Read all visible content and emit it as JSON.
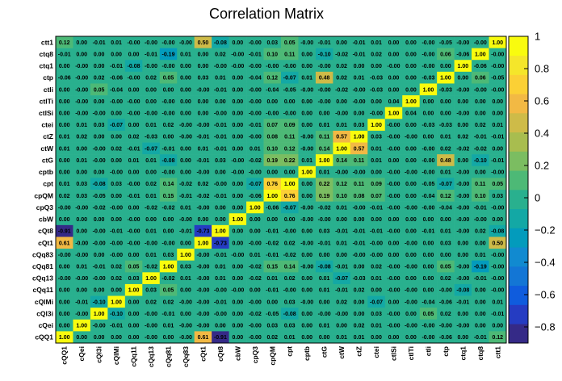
{
  "chart_data": {
    "type": "heatmap",
    "title": "Correlation Matrix",
    "x_labels": [
      "cQQ1",
      "cQei",
      "cQl3i",
      "cQlMi",
      "cQq11",
      "cQq13",
      "cQq81",
      "cQq83",
      "cQt1",
      "cQt8",
      "cbW",
      "cpQ3",
      "cpQM",
      "cpt",
      "cptb",
      "ctG",
      "ctW",
      "ctZ",
      "ctei",
      "ctlSi",
      "ctlTi",
      "ctli",
      "ctp",
      "ctq1",
      "ctq8",
      "ctt1"
    ],
    "y_labels": [
      "ctt1",
      "ctq8",
      "ctq1",
      "ctp",
      "ctli",
      "ctlTi",
      "ctlSi",
      "ctei",
      "ctZ",
      "ctW",
      "ctG",
      "cptb",
      "cpt",
      "cpQM",
      "cpQ3",
      "cbW",
      "cQt8",
      "cQt1",
      "cQq83",
      "cQq81",
      "cQq13",
      "cQq11",
      "cQlMi",
      "cQl3i",
      "cQei",
      "cQQ1"
    ],
    "values": [
      [
        "0.12",
        "0.00",
        "-0.01",
        "0.01",
        "-0.00",
        "-0.00",
        "-0.00",
        "-0.00",
        "0.50",
        "-0.08",
        "0.00",
        "-0.00",
        "0.03",
        "0.05",
        "-0.00",
        "-0.01",
        "0.00",
        "-0.01",
        "0.01",
        "0.00",
        "0.00",
        "-0.00",
        "-0.05",
        "-0.00",
        "-0.00",
        "1.00"
      ],
      [
        "-0.01",
        "0.00",
        "0.00",
        "0.00",
        "0.00",
        "-0.01",
        "-0.19",
        "0.01",
        "0.00",
        "0.02",
        "-0.00",
        "-0.01",
        "0.10",
        "0.11",
        "0.00",
        "-0.10",
        "-0.02",
        "-0.01",
        "0.02",
        "0.00",
        "0.00",
        "-0.00",
        "0.06",
        "-0.06",
        "1.00",
        "-0.00"
      ],
      [
        "0.00",
        "-0.00",
        "0.00",
        "-0.01",
        "-0.08",
        "-0.00",
        "-0.00",
        "0.00",
        "0.00",
        "-0.00",
        "-0.00",
        "-0.00",
        "-0.00",
        "-0.00",
        "0.00",
        "-0.00",
        "0.02",
        "0.00",
        "0.00",
        "-0.00",
        "0.00",
        "-0.00",
        "0.00",
        "1.00",
        "-0.06",
        "-0.00"
      ],
      [
        "-0.06",
        "-0.00",
        "0.02",
        "-0.06",
        "-0.00",
        "0.02",
        "0.05",
        "0.00",
        "0.03",
        "0.01",
        "0.00",
        "-0.04",
        "0.12",
        "-0.07",
        "0.01",
        "0.48",
        "0.02",
        "0.01",
        "-0.03",
        "0.00",
        "0.00",
        "-0.03",
        "1.00",
        "0.00",
        "0.06",
        "-0.05"
      ],
      [
        "0.00",
        "-0.00",
        "0.05",
        "-0.04",
        "0.00",
        "0.00",
        "0.00",
        "0.00",
        "-0.00",
        "-0.01",
        "0.00",
        "-0.00",
        "-0.04",
        "-0.05",
        "-0.00",
        "-0.00",
        "-0.02",
        "-0.00",
        "-0.03",
        "0.00",
        "0.00",
        "1.00",
        "-0.03",
        "-0.00",
        "-0.00",
        "-0.00"
      ],
      [
        "0.00",
        "-0.00",
        "0.00",
        "-0.00",
        "-0.00",
        "0.00",
        "-0.00",
        "0.00",
        "0.00",
        "0.00",
        "0.00",
        "-0.00",
        "0.00",
        "0.00",
        "0.00",
        "-0.00",
        "0.00",
        "-0.00",
        "0.00",
        "0.04",
        "1.00",
        "0.00",
        "0.00",
        "0.00",
        "0.00",
        "0.00"
      ],
      [
        "0.00",
        "-0.00",
        "-0.00",
        "0.00",
        "-0.00",
        "-0.00",
        "-0.00",
        "0.00",
        "0.00",
        "-0.00",
        "0.00",
        "-0.00",
        "-0.00",
        "-0.00",
        "0.00",
        "0.00",
        "-0.00",
        "0.00",
        "-0.00",
        "1.00",
        "0.04",
        "0.00",
        "0.00",
        "-0.00",
        "0.00",
        "0.00"
      ],
      [
        "0.00",
        "0.01",
        "0.03",
        "-0.07",
        "0.00",
        "0.01",
        "0.02",
        "-0.00",
        "-0.00",
        "-0.01",
        "0.00",
        "-0.01",
        "0.07",
        "0.09",
        "0.00",
        "0.01",
        "0.01",
        "0.03",
        "1.00",
        "-0.00",
        "0.00",
        "-0.03",
        "-0.03",
        "0.00",
        "0.02",
        "0.01"
      ],
      [
        "0.01",
        "0.02",
        "0.00",
        "0.00",
        "0.02",
        "-0.03",
        "0.00",
        "-0.00",
        "-0.01",
        "-0.01",
        "0.00",
        "-0.00",
        "0.08",
        "0.11",
        "-0.00",
        "0.11",
        "0.57",
        "1.00",
        "0.03",
        "-0.00",
        "-0.00",
        "0.00",
        "0.01",
        "0.02",
        "-0.01",
        "-0.01"
      ],
      [
        "0.01",
        "0.00",
        "-0.00",
        "0.02",
        "-0.01",
        "-0.07",
        "-0.01",
        "0.00",
        "0.01",
        "-0.01",
        "0.00",
        "0.01",
        "0.10",
        "0.12",
        "-0.00",
        "0.14",
        "1.00",
        "0.57",
        "0.01",
        "-0.00",
        "0.00",
        "-0.00",
        "0.02",
        "-0.02",
        "-0.02",
        "0.00"
      ],
      [
        "0.00",
        "0.01",
        "-0.00",
        "0.00",
        "0.01",
        "0.01",
        "-0.08",
        "0.00",
        "-0.01",
        "0.03",
        "-0.00",
        "-0.02",
        "0.19",
        "0.22",
        "0.01",
        "1.00",
        "0.14",
        "0.11",
        "0.01",
        "0.00",
        "0.00",
        "-0.00",
        "0.48",
        "0.00",
        "-0.10",
        "-0.01"
      ],
      [
        "0.00",
        "0.00",
        "0.00",
        "-0.00",
        "0.00",
        "0.00",
        "-0.00",
        "0.00",
        "-0.00",
        "0.00",
        "-0.00",
        "-0.00",
        "0.00",
        "0.00",
        "1.00",
        "0.01",
        "-0.00",
        "-0.00",
        "0.00",
        "-0.00",
        "-0.00",
        "-0.00",
        "0.01",
        "-0.00",
        "0.00",
        "-0.00"
      ],
      [
        "0.01",
        "0.03",
        "-0.08",
        "0.03",
        "-0.00",
        "0.02",
        "0.14",
        "-0.02",
        "0.02",
        "-0.00",
        "0.00",
        "-0.07",
        "0.76",
        "1.00",
        "0.00",
        "0.22",
        "0.12",
        "0.11",
        "0.09",
        "-0.00",
        "0.00",
        "-0.05",
        "-0.07",
        "-0.00",
        "0.11",
        "0.05"
      ],
      [
        "0.02",
        "0.03",
        "-0.05",
        "0.00",
        "-0.01",
        "0.01",
        "0.15",
        "-0.01",
        "-0.02",
        "-0.01",
        "0.00",
        "-0.06",
        "1.00",
        "0.76",
        "0.00",
        "0.19",
        "0.10",
        "0.08",
        "0.07",
        "-0.00",
        "0.00",
        "-0.04",
        "0.12",
        "-0.00",
        "0.10",
        "0.03"
      ],
      [
        "-0.00",
        "-0.00",
        "-0.02",
        "-0.00",
        "0.00",
        "-0.02",
        "-0.02",
        "0.01",
        "-0.00",
        "0.00",
        "0.00",
        "1.00",
        "-0.06",
        "-0.07",
        "-0.00",
        "-0.02",
        "0.01",
        "-0.00",
        "-0.01",
        "-0.00",
        "-0.00",
        "-0.00",
        "-0.04",
        "-0.00",
        "-0.01",
        "-0.00"
      ],
      [
        "0.00",
        "0.00",
        "0.00",
        "0.00",
        "-0.00",
        "0.00",
        "0.00",
        "-0.00",
        "0.00",
        "0.00",
        "1.00",
        "0.00",
        "0.00",
        "0.00",
        "-0.00",
        "-0.00",
        "0.00",
        "0.00",
        "0.00",
        "0.00",
        "0.00",
        "0.00",
        "0.00",
        "-0.00",
        "-0.00",
        "0.00"
      ],
      [
        "-0.91",
        "0.00",
        "-0.00",
        "-0.01",
        "-0.00",
        "0.01",
        "0.00",
        "-0.01",
        "-0.73",
        "1.00",
        "0.00",
        "0.00",
        "-0.01",
        "-0.00",
        "0.00",
        "0.03",
        "-0.01",
        "-0.01",
        "-0.01",
        "-0.00",
        "0.00",
        "-0.01",
        "0.01",
        "-0.00",
        "0.02",
        "-0.08"
      ],
      [
        "0.61",
        "-0.00",
        "-0.00",
        "-0.00",
        "-0.00",
        "-0.00",
        "-0.00",
        "0.00",
        "1.00",
        "-0.73",
        "0.00",
        "-0.00",
        "-0.02",
        "0.02",
        "-0.00",
        "-0.01",
        "0.01",
        "-0.01",
        "-0.00",
        "0.00",
        "-0.00",
        "0.00",
        "0.03",
        "0.00",
        "0.00",
        "0.50"
      ],
      [
        "-0.00",
        "-0.00",
        "0.00",
        "-0.00",
        "0.00",
        "0.01",
        "0.03",
        "1.00",
        "-0.00",
        "-0.01",
        "-0.00",
        "0.01",
        "-0.01",
        "-0.02",
        "0.00",
        "0.00",
        "0.00",
        "-0.00",
        "-0.00",
        "0.00",
        "0.00",
        "0.00",
        "0.00",
        "0.00",
        "0.01",
        "-0.00"
      ],
      [
        "0.00",
        "0.01",
        "-0.01",
        "0.02",
        "0.05",
        "-0.02",
        "1.00",
        "0.03",
        "-0.00",
        "0.01",
        "0.00",
        "-0.02",
        "0.15",
        "0.14",
        "-0.00",
        "-0.08",
        "-0.01",
        "0.00",
        "0.02",
        "-0.00",
        "-0.00",
        "0.00",
        "0.05",
        "-0.00",
        "-0.19",
        "-0.00"
      ],
      [
        "-0.00",
        "-0.00",
        "-0.00",
        "0.02",
        "0.03",
        "1.00",
        "-0.02",
        "0.01",
        "-0.00",
        "0.01",
        "0.00",
        "-0.02",
        "0.01",
        "0.02",
        "0.00",
        "0.01",
        "-0.07",
        "-0.03",
        "0.01",
        "-0.00",
        "0.00",
        "0.00",
        "0.02",
        "-0.00",
        "-0.01",
        "-0.00"
      ],
      [
        "0.00",
        "0.00",
        "0.00",
        "0.00",
        "1.00",
        "0.03",
        "0.05",
        "0.00",
        "-0.00",
        "-0.00",
        "-0.00",
        "0.00",
        "-0.01",
        "-0.00",
        "0.00",
        "0.01",
        "-0.01",
        "0.02",
        "0.00",
        "-0.00",
        "-0.00",
        "0.00",
        "-0.00",
        "-0.08",
        "0.00",
        "-0.00"
      ],
      [
        "0.00",
        "-0.01",
        "-0.10",
        "1.00",
        "0.00",
        "0.02",
        "0.02",
        "-0.00",
        "-0.00",
        "-0.01",
        "0.00",
        "-0.00",
        "0.00",
        "0.03",
        "-0.00",
        "0.00",
        "0.02",
        "0.00",
        "-0.07",
        "0.00",
        "-0.00",
        "-0.04",
        "-0.06",
        "-0.01",
        "0.00",
        "0.01"
      ],
      [
        "0.00",
        "-0.00",
        "1.00",
        "-0.10",
        "0.00",
        "-0.00",
        "-0.01",
        "0.00",
        "-0.00",
        "-0.00",
        "0.00",
        "-0.02",
        "-0.05",
        "-0.08",
        "0.00",
        "-0.00",
        "-0.00",
        "0.00",
        "0.03",
        "-0.00",
        "0.00",
        "0.05",
        "0.02",
        "0.00",
        "0.00",
        "-0.01"
      ],
      [
        "0.00",
        "1.00",
        "-0.00",
        "-0.01",
        "0.00",
        "-0.00",
        "0.01",
        "-0.00",
        "-0.00",
        "0.00",
        "0.00",
        "-0.00",
        "0.03",
        "0.03",
        "0.00",
        "0.01",
        "0.00",
        "0.02",
        "0.01",
        "-0.00",
        "-0.00",
        "-0.00",
        "-0.00",
        "-0.00",
        "0.00",
        "0.00"
      ],
      [
        "1.00",
        "0.00",
        "0.00",
        "0.00",
        "0.00",
        "-0.00",
        "0.00",
        "-0.00",
        "0.61",
        "-0.91",
        "0.00",
        "-0.00",
        "0.02",
        "0.01",
        "0.00",
        "0.00",
        "0.01",
        "0.01",
        "0.00",
        "0.00",
        "0.00",
        "-0.00",
        "-0.06",
        "0.00",
        "-0.01",
        "0.12"
      ]
    ],
    "zlim": [
      -0.9,
      1.0
    ],
    "colorbar_ticks": [
      -0.8,
      -0.6,
      -0.4,
      -0.2,
      0,
      0.2,
      0.4,
      0.6,
      0.8,
      1
    ],
    "colorbar_tick_labels": [
      "−0.8",
      "−0.6",
      "−0.4",
      "−0.2",
      "0",
      "0.2",
      "0.4",
      "0.6",
      "0.8",
      "1"
    ],
    "palette": [
      "#352a87",
      "#253cc2",
      "#0f5cdd",
      "#1376d5",
      "#118ad0",
      "#039bbc",
      "#13a8a5",
      "#29b08e",
      "#4db976",
      "#7bbd61",
      "#a8bd4f",
      "#cebb48",
      "#f2b944",
      "#fbd035",
      "#f5e62a",
      "#f9fb0e"
    ]
  }
}
